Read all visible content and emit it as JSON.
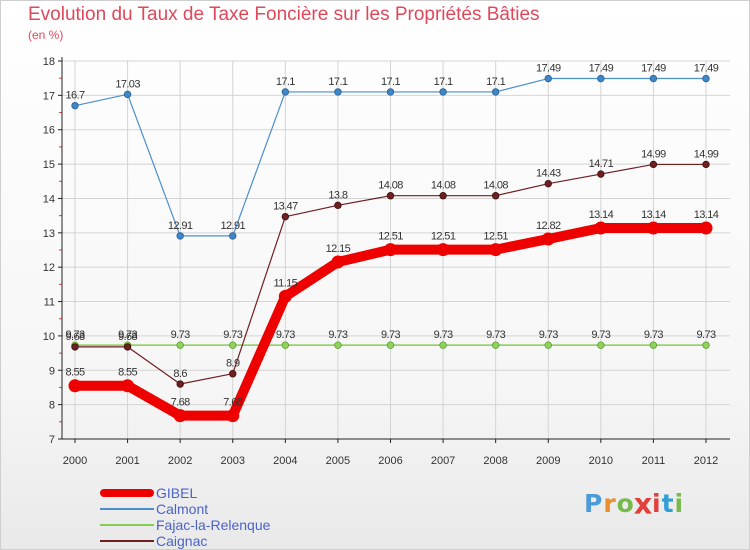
{
  "title": "Evolution du Taux de Taxe Foncière sur les Propriétés Bâties",
  "subtitle": "(en %)",
  "logo": {
    "letters": [
      "P",
      "r",
      "o",
      "x",
      "i",
      "t",
      "i"
    ],
    "colors": [
      "#4a9bd8",
      "#e98e2e",
      "#78b94c",
      "#e2413b",
      "#e2413b",
      "#2f9fd6",
      "#78b94c"
    ]
  },
  "chart_data": {
    "type": "line",
    "title": "Evolution du Taux de Taxe Foncière sur les Propriétés Bâties",
    "ylabel": "(en %)",
    "xlabel": "",
    "x": [
      "2000",
      "2001",
      "2002",
      "2003",
      "2004",
      "2005",
      "2006",
      "2007",
      "2008",
      "2009",
      "2010",
      "2011",
      "2012"
    ],
    "ylim": [
      7,
      18
    ],
    "yticks": [
      "7",
      "8",
      "9",
      "10",
      "11",
      "12",
      "13",
      "14",
      "15",
      "16",
      "17",
      "18"
    ],
    "legend_position": "bottom-left",
    "series": [
      {
        "name": "GIBEL",
        "color": "#ee0000",
        "values": [
          8.55,
          8.55,
          7.68,
          7.68,
          11.15,
          12.15,
          12.51,
          12.51,
          12.51,
          12.82,
          13.14,
          13.14,
          13.14
        ],
        "labels": [
          "8.55",
          "8.55",
          "7.68",
          "7.68",
          "11.15",
          "12.15",
          "12.51",
          "12.51",
          "12.51",
          "12.82",
          "13.14",
          "13.14",
          "13.14"
        ]
      },
      {
        "name": "Calmont",
        "color": "#4a8fcc",
        "values": [
          16.7,
          17.03,
          12.91,
          12.91,
          17.1,
          17.1,
          17.1,
          17.1,
          17.1,
          17.49,
          17.49,
          17.49,
          17.49
        ],
        "labels": [
          "16.7",
          "17.03",
          "12.91",
          "12.91",
          "17.1",
          "17.1",
          "17.1",
          "17.1",
          "17.1",
          "17.49",
          "17.49",
          "17.49",
          "17.49"
        ]
      },
      {
        "name": "Fajac-la-Relenque",
        "color": "#88cc55",
        "values": [
          9.73,
          9.73,
          9.73,
          9.73,
          9.73,
          9.73,
          9.73,
          9.73,
          9.73,
          9.73,
          9.73,
          9.73,
          9.73
        ],
        "labels": [
          "9.73",
          "9.73",
          "9.73",
          "9.73",
          "9.73",
          "9.73",
          "9.73",
          "9.73",
          "9.73",
          "9.73",
          "9.73",
          "9.73",
          "9.73"
        ]
      },
      {
        "name": "Caignac",
        "color": "#6e1f1f",
        "values": [
          9.68,
          9.68,
          8.6,
          8.9,
          13.47,
          13.8,
          14.08,
          14.08,
          14.08,
          14.43,
          14.71,
          14.99,
          14.99
        ],
        "labels": [
          "9.68",
          "9.68",
          "8.6",
          "8.9",
          "13.47",
          "13.8",
          "14.08",
          "14.08",
          "14.08",
          "14.43",
          "14.71",
          "14.99",
          "14.99"
        ]
      }
    ]
  }
}
